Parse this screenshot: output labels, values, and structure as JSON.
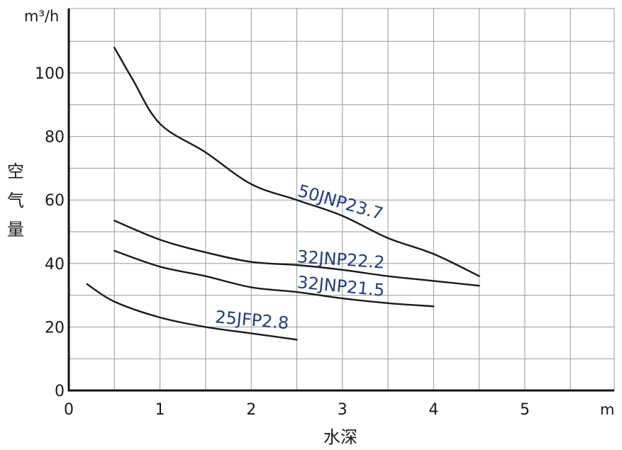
{
  "chart_data": {
    "type": "line",
    "y_unit": "m³/h",
    "x_unit": "m",
    "ylabel": "空气量",
    "xlabel": "水深",
    "xlim": [
      0,
      6
    ],
    "ylim": [
      0,
      120
    ],
    "x_ticks": [
      0,
      1,
      2,
      3,
      4,
      5
    ],
    "y_ticks": [
      0,
      20,
      40,
      60,
      80,
      100
    ],
    "grid": true,
    "series": [
      {
        "name": "50JNP23.7",
        "x": [
          0.5,
          0.7,
          1.0,
          1.5,
          2.0,
          2.5,
          3.0,
          3.5,
          4.0,
          4.5
        ],
        "y": [
          108,
          98,
          84,
          75,
          65,
          60,
          55,
          48,
          43,
          36
        ]
      },
      {
        "name": "32JNP22.2",
        "x": [
          0.5,
          1.0,
          1.5,
          2.0,
          2.5,
          3.0,
          3.5,
          4.0,
          4.5
        ],
        "y": [
          53.5,
          47.5,
          43.5,
          40.5,
          39.5,
          38,
          36,
          34.5,
          33
        ]
      },
      {
        "name": "32JNP21.5",
        "x": [
          0.5,
          1.0,
          1.5,
          2.0,
          2.5,
          3.0,
          3.5,
          4.0
        ],
        "y": [
          44,
          39,
          36,
          32.5,
          31,
          29,
          27.5,
          26.5
        ]
      },
      {
        "name": "25JFP2.8",
        "x": [
          0.2,
          0.5,
          1.0,
          1.5,
          2.0,
          2.5
        ],
        "y": [
          33.5,
          28,
          23,
          20,
          18,
          16
        ]
      }
    ]
  }
}
